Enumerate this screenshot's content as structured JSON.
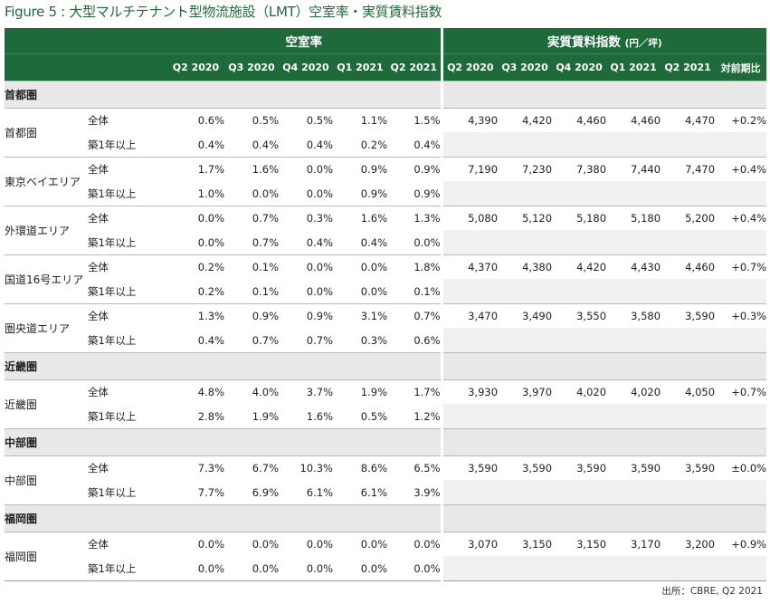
{
  "title": "Figure 5 : 大型マルチテナント型物流施設（LMT）空室率・実質賃料指数",
  "header": {
    "vacancy_label": "空室率",
    "rent_label": "実質賃料指数",
    "rent_unit": "(円／坪)",
    "periods": [
      "Q2 2020",
      "Q3 2020",
      "Q4 2020",
      "Q1 2021",
      "Q2 2021"
    ],
    "rent_periods": [
      "Q2 2020",
      "Q3 2020",
      "Q4 2020",
      "Q1 2021",
      "Q2 2021"
    ],
    "yoy_label": "対前期比"
  },
  "types": {
    "all": "全体",
    "newer": "築1年以上"
  },
  "regions": [
    {
      "name": "首都圏",
      "areas": [
        {
          "name": "首都圏",
          "all_vac": [
            "0.6%",
            "0.5%",
            "0.5%",
            "1.1%",
            "1.5%"
          ],
          "new_vac": [
            "0.4%",
            "0.4%",
            "0.4%",
            "0.2%",
            "0.4%"
          ],
          "rent": [
            "4,390",
            "4,420",
            "4,460",
            "4,460",
            "4,470"
          ],
          "yoy": "+0.2%"
        },
        {
          "name": "東京ベイエリア",
          "all_vac": [
            "1.7%",
            "1.6%",
            "0.0%",
            "0.9%",
            "0.9%"
          ],
          "new_vac": [
            "1.0%",
            "0.0%",
            "0.0%",
            "0.9%",
            "0.9%"
          ],
          "rent": [
            "7,190",
            "7,230",
            "7,380",
            "7,440",
            "7,470"
          ],
          "yoy": "+0.4%"
        },
        {
          "name": "外環道エリア",
          "all_vac": [
            "0.0%",
            "0.7%",
            "0.3%",
            "1.6%",
            "1.3%"
          ],
          "new_vac": [
            "0.0%",
            "0.7%",
            "0.4%",
            "0.4%",
            "0.0%"
          ],
          "rent": [
            "5,080",
            "5,120",
            "5,180",
            "5,180",
            "5,200"
          ],
          "yoy": "+0.4%"
        },
        {
          "name": "国道16号エリア",
          "all_vac": [
            "0.2%",
            "0.1%",
            "0.0%",
            "0.0%",
            "1.8%"
          ],
          "new_vac": [
            "0.2%",
            "0.1%",
            "0.0%",
            "0.0%",
            "0.1%"
          ],
          "rent": [
            "4,370",
            "4,380",
            "4,420",
            "4,430",
            "4,460"
          ],
          "yoy": "+0.7%"
        },
        {
          "name": "圏央道エリア",
          "all_vac": [
            "1.3%",
            "0.9%",
            "0.9%",
            "3.1%",
            "0.7%"
          ],
          "new_vac": [
            "0.4%",
            "0.7%",
            "0.7%",
            "0.3%",
            "0.6%"
          ],
          "rent": [
            "3,470",
            "3,490",
            "3,550",
            "3,580",
            "3,590"
          ],
          "yoy": "+0.3%"
        }
      ]
    },
    {
      "name": "近畿圏",
      "areas": [
        {
          "name": "近畿圏",
          "all_vac": [
            "4.8%",
            "4.0%",
            "3.7%",
            "1.9%",
            "1.7%"
          ],
          "new_vac": [
            "2.8%",
            "1.9%",
            "1.6%",
            "0.5%",
            "1.2%"
          ],
          "rent": [
            "3,930",
            "3,970",
            "4,020",
            "4,020",
            "4,050"
          ],
          "yoy": "+0.7%"
        }
      ]
    },
    {
      "name": "中部圏",
      "areas": [
        {
          "name": "中部圏",
          "all_vac": [
            "7.3%",
            "6.7%",
            "10.3%",
            "8.6%",
            "6.5%"
          ],
          "new_vac": [
            "7.7%",
            "6.9%",
            "6.1%",
            "6.1%",
            "3.9%"
          ],
          "rent": [
            "3,590",
            "3,590",
            "3,590",
            "3,590",
            "3,590"
          ],
          "yoy": "±0.0%"
        }
      ]
    },
    {
      "name": "福岡圏",
      "areas": [
        {
          "name": "福岡圏",
          "all_vac": [
            "0.0%",
            "0.0%",
            "0.0%",
            "0.0%",
            "0.0%"
          ],
          "new_vac": [
            "0.0%",
            "0.0%",
            "0.0%",
            "0.0%",
            "0.0%"
          ],
          "rent": [
            "3,070",
            "3,150",
            "3,150",
            "3,170",
            "3,200"
          ],
          "yoy": "+0.9%"
        }
      ]
    }
  ],
  "source": "出所：CBRE, Q2 2021"
}
